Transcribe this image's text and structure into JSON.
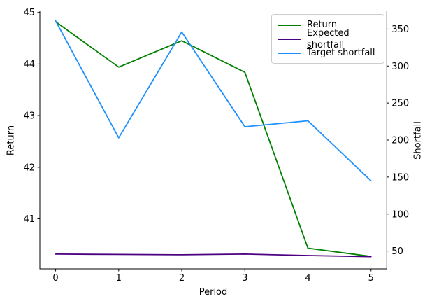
{
  "figure": {
    "background": "#ffffff",
    "axes_edge_color": "#000000",
    "tick_color": "#000000",
    "legend_border_color": "#cccccc"
  },
  "chart_data": {
    "type": "line",
    "title": "",
    "xlabel": "Period",
    "ylabel_left": "Return",
    "ylabel_right": "Shortfall",
    "grid": false,
    "legend_position": "upper right",
    "x": [
      0,
      1,
      2,
      3,
      4,
      5
    ],
    "xticks": [
      0,
      1,
      2,
      3,
      4,
      5
    ],
    "xlim": [
      -0.25,
      5.25
    ],
    "ylim_left": [
      40.03,
      45.03
    ],
    "yticks_left": [
      41,
      42,
      43,
      44,
      45
    ],
    "ylim_right": [
      26,
      374.5
    ],
    "yticks_right": [
      50,
      100,
      150,
      200,
      250,
      300,
      350
    ],
    "series": [
      {
        "name": "Return",
        "axis": "left",
        "color": "#008000",
        "values": [
          44.82,
          43.94,
          44.45,
          43.84,
          40.43,
          40.27
        ]
      },
      {
        "name": "Expected shortfall",
        "axis": "right",
        "color": "#4b0082",
        "values": [
          46,
          45.5,
          45,
          46,
          44,
          42.5
        ]
      },
      {
        "name": "Target shortfall",
        "axis": "right",
        "color": "#1e90ff",
        "values": [
          361,
          203,
          346,
          218,
          226,
          145
        ]
      }
    ]
  }
}
